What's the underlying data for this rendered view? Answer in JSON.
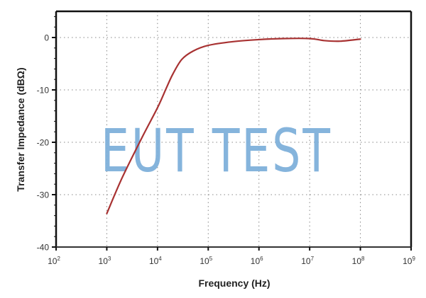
{
  "chart_data": {
    "type": "line",
    "title": "",
    "xlabel": "Frequency (Hz)",
    "ylabel": "Transfer Impedance (dBΩ)",
    "xscale": "log",
    "xlim": [
      100,
      1000000000
    ],
    "ylim": [
      -40,
      5
    ],
    "grid": true,
    "legend": null,
    "x_ticks": [
      "10^2",
      "10^3",
      "10^4",
      "10^5",
      "10^6",
      "10^7",
      "10^8",
      "10^9"
    ],
    "y_ticks": [
      "0",
      "-10",
      "-20",
      "-30",
      "-40"
    ],
    "series": [
      {
        "name": "Transfer Impedance",
        "color": "#a83232",
        "x": [
          1000,
          2000,
          5000,
          10000,
          15000,
          20000,
          30000,
          50000,
          100000,
          300000,
          1000000,
          3000000,
          10000000,
          20000000,
          40000000,
          100000000
        ],
        "y": [
          -33.6,
          -26.8,
          -19.0,
          -13.4,
          -9.6,
          -7.0,
          -4.2,
          -2.6,
          -1.5,
          -0.8,
          -0.4,
          -0.2,
          -0.2,
          -0.6,
          -0.7,
          -0.3
        ]
      }
    ],
    "annotations": [
      "EUT TEST"
    ]
  },
  "axes": {
    "x_title": "Frequency (Hz)",
    "y_title": "Transfer Impedance (dBΩ)",
    "x_tick_labels": [
      {
        "base": "10",
        "exp": "2"
      },
      {
        "base": "10",
        "exp": "3"
      },
      {
        "base": "10",
        "exp": "4"
      },
      {
        "base": "10",
        "exp": "5"
      },
      {
        "base": "10",
        "exp": "6"
      },
      {
        "base": "10",
        "exp": "7"
      },
      {
        "base": "10",
        "exp": "8"
      },
      {
        "base": "10",
        "exp": "9"
      }
    ],
    "y_tick_labels": [
      "0",
      "-10",
      "-20",
      "-30",
      "-40"
    ]
  },
  "watermark": {
    "text": "EUT TEST",
    "color": "#7fb0db"
  },
  "colors": {
    "line": "#a83232",
    "axis": "#111111",
    "grid": "#888888"
  }
}
